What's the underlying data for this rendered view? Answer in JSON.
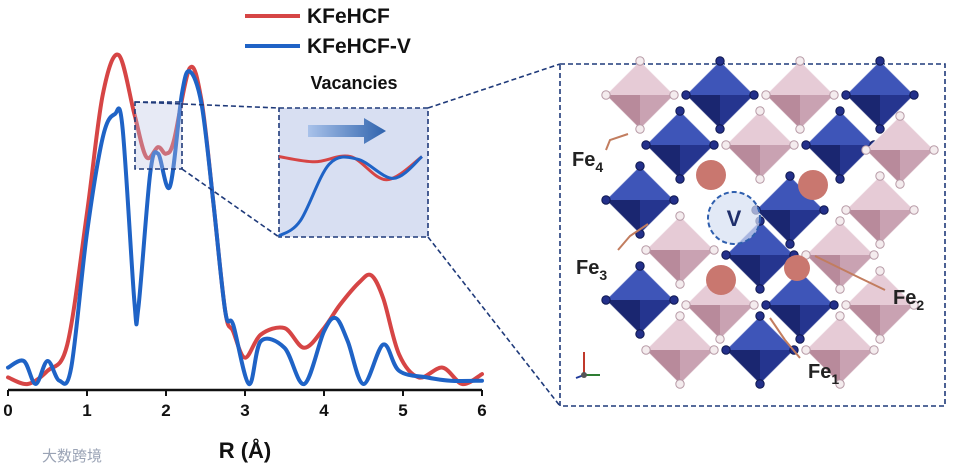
{
  "legend": [
    {
      "label": "KFeHCF",
      "color": "#d64545"
    },
    {
      "label": "KFeHCF-V",
      "color": "#1f63c6"
    }
  ],
  "xaxis": {
    "label": "R (Å)",
    "ticks": [
      "0",
      "1",
      "2",
      "3",
      "4",
      "5",
      "6"
    ]
  },
  "inset": {
    "label": "Vacancies"
  },
  "structure": {
    "vacancy_label": "V",
    "fe_labels": [
      {
        "base": "Fe",
        "sub": "4"
      },
      {
        "base": "Fe",
        "sub": "3"
      },
      {
        "base": "Fe",
        "sub": "2"
      },
      {
        "base": "Fe",
        "sub": "1"
      }
    ]
  },
  "watermark": "大数跨境",
  "chart_data": {
    "type": "line",
    "xlabel": "R (Å)",
    "ylabel": "",
    "xlim": [
      0,
      6
    ],
    "series": [
      {
        "name": "KFeHCF",
        "color": "#d64545",
        "x": [
          0,
          0.25,
          0.5,
          0.75,
          1.0,
          1.2,
          1.4,
          1.6,
          1.75,
          1.9,
          2.0,
          2.1,
          2.3,
          2.45,
          2.6,
          2.75,
          2.85,
          3.0,
          3.2,
          3.5,
          3.75,
          4.0,
          4.2,
          4.45,
          4.6,
          4.75,
          4.95,
          5.2,
          5.5,
          5.75,
          6.0
        ],
        "y": [
          0.02,
          0.0,
          0.04,
          0.12,
          0.52,
          0.88,
          1.0,
          0.82,
          0.69,
          0.72,
          0.7,
          0.74,
          0.96,
          0.86,
          0.55,
          0.22,
          0.16,
          0.08,
          0.15,
          0.17,
          0.11,
          0.17,
          0.24,
          0.31,
          0.33,
          0.26,
          0.09,
          0.02,
          0.05,
          0.0,
          0.03
        ]
      },
      {
        "name": "KFeHCF-V",
        "color": "#1f63c6",
        "x": [
          0,
          0.2,
          0.35,
          0.5,
          0.65,
          0.8,
          1.0,
          1.2,
          1.35,
          1.45,
          1.6,
          1.65,
          1.8,
          1.9,
          2.05,
          2.2,
          2.3,
          2.45,
          2.6,
          2.75,
          2.85,
          3.05,
          3.2,
          3.5,
          3.75,
          4.0,
          4.15,
          4.3,
          4.5,
          4.75,
          4.95,
          5.3,
          5.6,
          6.0
        ],
        "y": [
          0.05,
          0.07,
          0.0,
          0.07,
          0.01,
          0.05,
          0.46,
          0.75,
          0.82,
          0.78,
          0.25,
          0.23,
          0.64,
          0.7,
          0.6,
          0.88,
          0.95,
          0.85,
          0.55,
          0.22,
          0.18,
          0.0,
          0.13,
          0.11,
          0.0,
          0.16,
          0.2,
          0.13,
          0.0,
          0.12,
          0.04,
          0.02,
          0.01,
          0.01
        ]
      }
    ],
    "inset_series": [
      {
        "name": "KFeHCF",
        "x": [
          0,
          0.25,
          0.5,
          0.75,
          1.0
        ],
        "y": [
          0.62,
          0.58,
          0.62,
          0.44,
          0.62
        ]
      },
      {
        "name": "KFeHCF-V",
        "x": [
          0,
          0.15,
          0.35,
          0.55,
          0.8,
          1.0
        ],
        "y": [
          -0.2,
          0.12,
          0.56,
          0.6,
          0.45,
          0.62
        ]
      }
    ]
  }
}
